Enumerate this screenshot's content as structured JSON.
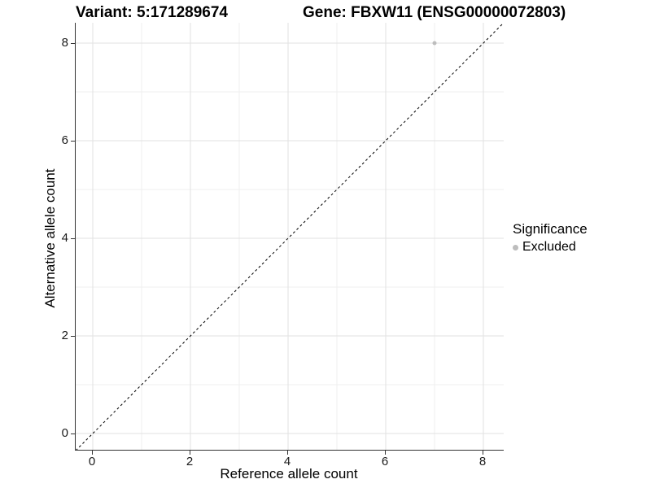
{
  "header": {
    "variant_title": "Variant: 5:171289674",
    "gene_title": "Gene: FBXW11 (ENSG00000072803)"
  },
  "axes": {
    "x": {
      "label": "Reference allele count",
      "tick_labels": [
        "0",
        "2",
        "4",
        "6",
        "8"
      ],
      "tick_values": [
        0,
        2,
        4,
        6,
        8
      ]
    },
    "y": {
      "label": "Alternative allele count",
      "tick_labels": [
        "0",
        "2",
        "4",
        "6",
        "8"
      ],
      "tick_values": [
        0,
        2,
        4,
        6,
        8
      ]
    }
  },
  "legend": {
    "title": "Significance",
    "items": [
      {
        "label": "Excluded",
        "color": "#bdbdbd"
      }
    ]
  },
  "chart_data": {
    "type": "scatter",
    "title": "Variant: 5:171289674 — Gene: FBXW11 (ENSG00000072803)",
    "xlabel": "Reference allele count",
    "ylabel": "Alternative allele count",
    "xlim": [
      -0.35,
      8.42
    ],
    "ylim": [
      -0.35,
      8.42
    ],
    "x_major_ticks": [
      0,
      2,
      4,
      6,
      8
    ],
    "y_major_ticks": [
      0,
      2,
      4,
      6,
      8
    ],
    "x_minor_gridlines": [
      1,
      3,
      5,
      7
    ],
    "y_minor_gridlines": [
      1,
      3,
      5,
      7
    ],
    "grid": true,
    "legend_position": "right",
    "reference_line": {
      "type": "identity",
      "style": "dashed",
      "color": "#000000"
    },
    "series": [
      {
        "name": "Excluded",
        "color": "#bdbdbd",
        "points": [
          {
            "x": 7,
            "y": 8
          }
        ]
      }
    ]
  },
  "colors": {
    "background": "#ffffff",
    "grid_major": "#e2e2e2",
    "grid_minor": "#efefef",
    "axis_line": "#333333",
    "point": "#bdbdbd"
  }
}
